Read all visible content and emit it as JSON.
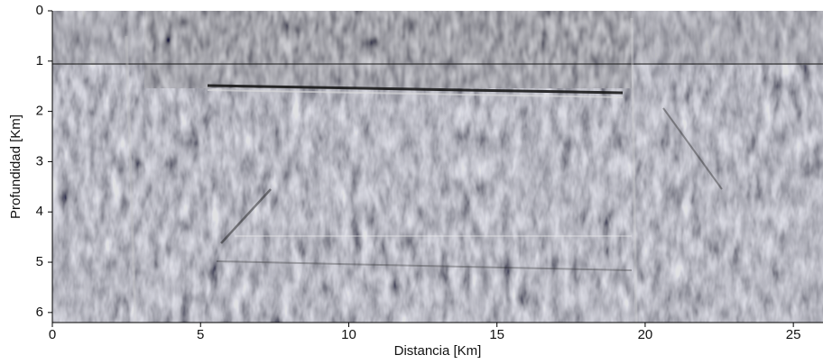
{
  "chart_data": {
    "type": "image",
    "xlabel": "Distancia [Km]",
    "ylabel": "Profundidad [Km]",
    "xlim": [
      0,
      26
    ],
    "ylim": [
      0,
      6.2
    ],
    "y_inverted": true,
    "xticks": [
      0,
      5,
      10,
      15,
      20,
      25
    ],
    "yticks": [
      0,
      1,
      2,
      3,
      4,
      5,
      6
    ]
  }
}
